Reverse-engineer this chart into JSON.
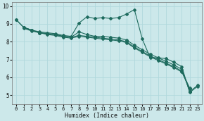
{
  "xlabel": "Humidex (Indice chaleur)",
  "bg_color": "#cce8ea",
  "grid_color": "#b0d8dc",
  "line_color": "#1e6b5e",
  "xlim": [
    -0.5,
    23.5
  ],
  "ylim": [
    4.5,
    10.2
  ],
  "yticks": [
    5,
    6,
    7,
    8,
    9,
    10
  ],
  "xticks": [
    0,
    1,
    2,
    3,
    4,
    5,
    6,
    7,
    8,
    9,
    10,
    11,
    12,
    13,
    14,
    15,
    16,
    17,
    18,
    19,
    20,
    21,
    22,
    23
  ],
  "series": [
    {
      "x": [
        0,
        1,
        2,
        3,
        4,
        5,
        6,
        7,
        8,
        9,
        10,
        11,
        12,
        13,
        14,
        15,
        16,
        17,
        18,
        19,
        20,
        21,
        22,
        23
      ],
      "y": [
        9.25,
        8.8,
        8.65,
        8.55,
        8.5,
        8.45,
        8.35,
        8.3,
        9.05,
        9.4,
        9.3,
        9.35,
        9.3,
        9.35,
        9.55,
        9.8,
        8.15,
        7.1,
        7.1,
        7.05,
        6.85,
        6.6,
        5.15,
        5.5
      ]
    },
    {
      "x": [
        0,
        1,
        2,
        3,
        4,
        5,
        6,
        7,
        8,
        9,
        10,
        11,
        12,
        13,
        14,
        15,
        16,
        17,
        18,
        19,
        20,
        21,
        22,
        23
      ],
      "y": [
        9.25,
        8.8,
        8.65,
        8.5,
        8.45,
        8.4,
        8.3,
        8.25,
        8.55,
        8.4,
        8.3,
        8.3,
        8.25,
        8.2,
        8.1,
        7.8,
        7.55,
        7.3,
        7.1,
        6.9,
        6.7,
        6.45,
        5.2,
        5.55
      ]
    },
    {
      "x": [
        1,
        2,
        3,
        4,
        5,
        6,
        7,
        8,
        9,
        10,
        11,
        12,
        13,
        14,
        15,
        16,
        17,
        18,
        19,
        20,
        21,
        22
      ],
      "y": [
        8.8,
        8.65,
        8.5,
        8.45,
        8.4,
        8.3,
        8.25,
        8.35,
        8.3,
        8.25,
        8.2,
        8.15,
        8.1,
        8.0,
        7.7,
        7.45,
        7.2,
        7.0,
        6.8,
        6.6,
        6.35,
        5.4
      ]
    },
    {
      "x": [
        1,
        2,
        3,
        4,
        5,
        6,
        7,
        8,
        9,
        10,
        11,
        12,
        13,
        14,
        15,
        16,
        17,
        18,
        19,
        20,
        21,
        22
      ],
      "y": [
        8.75,
        8.6,
        8.5,
        8.4,
        8.35,
        8.25,
        8.2,
        8.3,
        8.25,
        8.2,
        8.15,
        8.1,
        8.05,
        7.95,
        7.65,
        7.4,
        7.15,
        6.95,
        6.75,
        6.55,
        6.3,
        5.35
      ]
    }
  ]
}
